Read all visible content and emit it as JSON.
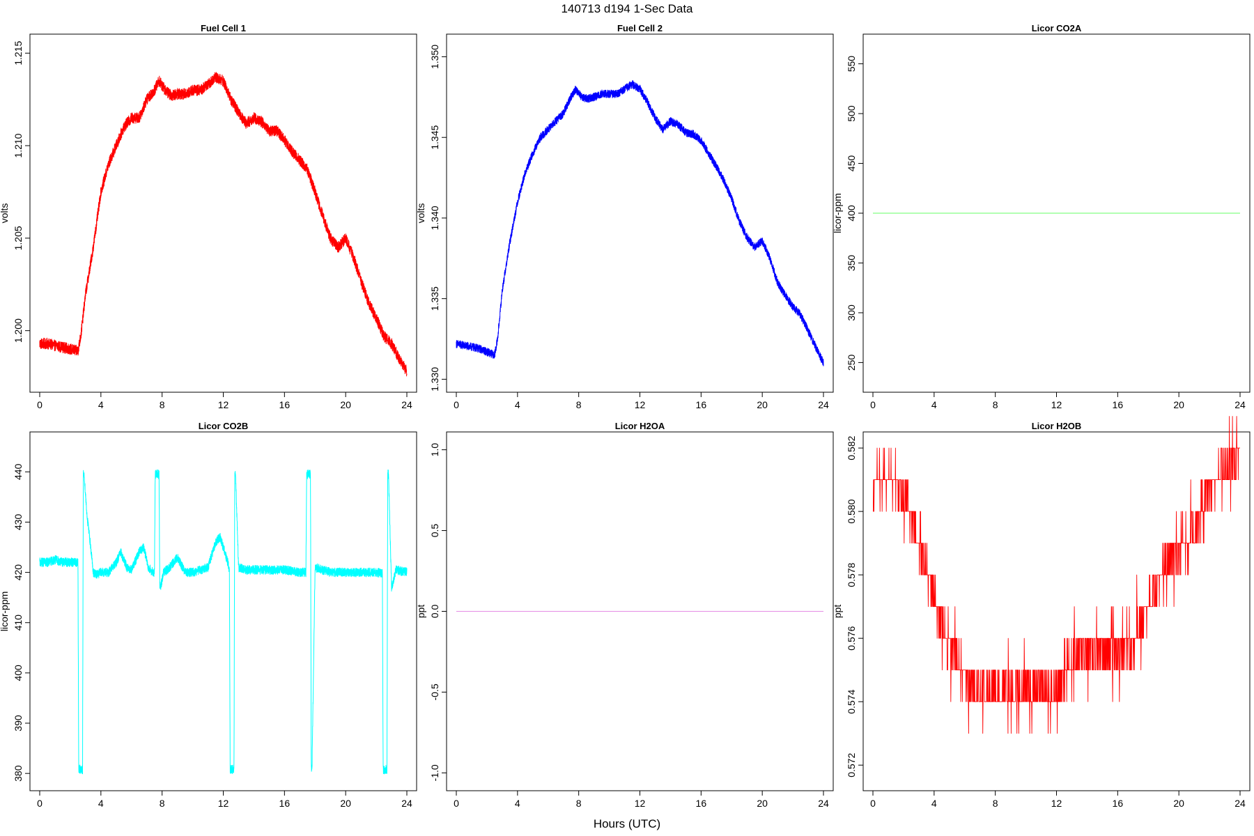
{
  "figure": {
    "title": "140713   d194   1-Sec Data",
    "xlabel": "Hours (UTC)"
  },
  "chart_data": [
    {
      "type": "line",
      "title": "Fuel Cell 1",
      "ylabel": "volts",
      "color": "#ff0000",
      "xlim": [
        0,
        24
      ],
      "ylim": [
        1.1972,
        1.2155
      ],
      "xticks": [
        0,
        4,
        8,
        12,
        16,
        20,
        24
      ],
      "xtick_labels": [
        "0",
        "4",
        "8",
        "12",
        "16",
        "20",
        "24"
      ],
      "yticks": [
        1.2,
        1.205,
        1.21,
        1.215
      ],
      "ytick_labels": [
        "1.200",
        "1.205",
        "1.210",
        "1.215"
      ],
      "noise": 0.0003,
      "x": [
        0,
        0.5,
        1,
        1.5,
        2,
        2.5,
        2.7,
        3,
        3.5,
        4,
        4.5,
        5,
        5.5,
        6,
        6.5,
        7,
        7.5,
        7.8,
        8.2,
        8.6,
        9,
        9.5,
        10,
        10.5,
        11,
        11.5,
        12,
        12.5,
        13,
        13.5,
        14,
        14.5,
        15,
        15.5,
        16,
        16.5,
        17,
        17.5,
        18,
        18.5,
        19,
        19.5,
        20,
        20.5,
        21,
        21.5,
        22,
        22.5,
        23,
        23.5,
        24
      ],
      "y": [
        1.1993,
        1.1993,
        1.1992,
        1.1991,
        1.199,
        1.1989,
        1.1998,
        1.202,
        1.2045,
        1.2075,
        1.209,
        1.21,
        1.211,
        1.2115,
        1.2115,
        1.2125,
        1.213,
        1.2135,
        1.213,
        1.2127,
        1.2128,
        1.2128,
        1.213,
        1.213,
        1.2133,
        1.2137,
        1.2135,
        1.2125,
        1.2118,
        1.2112,
        1.2115,
        1.2113,
        1.2108,
        1.2108,
        1.2103,
        1.2097,
        1.2092,
        1.2087,
        1.2075,
        1.2062,
        1.205,
        1.2045,
        1.205,
        1.204,
        1.2027,
        1.2015,
        1.2007,
        1.1997,
        1.1993,
        1.1985,
        1.1978
      ]
    },
    {
      "type": "line",
      "title": "Fuel Cell 2",
      "ylabel": "volts",
      "color": "#0000ff",
      "xlim": [
        0,
        24
      ],
      "ylim": [
        1.3298,
        1.3508
      ],
      "xticks": [
        0,
        4,
        8,
        12,
        16,
        20,
        24
      ],
      "xtick_labels": [
        "0",
        "4",
        "8",
        "12",
        "16",
        "20",
        "24"
      ],
      "yticks": [
        1.33,
        1.335,
        1.34,
        1.345,
        1.35
      ],
      "ytick_labels": [
        "1.330",
        "1.335",
        "1.340",
        "1.345",
        "1.350"
      ],
      "noise": 0.00025,
      "x": [
        0,
        0.5,
        1,
        1.5,
        2,
        2.5,
        2.7,
        3,
        3.5,
        4,
        4.5,
        5,
        5.5,
        6,
        6.5,
        7,
        7.5,
        7.8,
        8.2,
        8.6,
        9,
        9.5,
        10,
        10.5,
        11,
        11.5,
        12,
        12.5,
        13,
        13.5,
        14,
        14.5,
        15,
        15.5,
        16,
        16.5,
        17,
        17.5,
        18,
        18.5,
        19,
        19.5,
        20,
        20.5,
        21,
        21.5,
        22,
        22.5,
        23,
        23.5,
        24
      ],
      "y": [
        1.3322,
        1.3321,
        1.332,
        1.3319,
        1.3317,
        1.3315,
        1.3325,
        1.3355,
        1.3385,
        1.341,
        1.3428,
        1.344,
        1.345,
        1.3455,
        1.346,
        1.3465,
        1.3475,
        1.348,
        1.3475,
        1.3474,
        1.3475,
        1.3477,
        1.3477,
        1.3477,
        1.348,
        1.3483,
        1.348,
        1.3472,
        1.3462,
        1.3455,
        1.346,
        1.3458,
        1.3453,
        1.3452,
        1.3448,
        1.344,
        1.3432,
        1.3423,
        1.3412,
        1.3398,
        1.3388,
        1.3382,
        1.3386,
        1.3375,
        1.336,
        1.3352,
        1.3345,
        1.334,
        1.333,
        1.332,
        1.331
      ]
    },
    {
      "type": "line",
      "title": "Licor CO2A",
      "ylabel": "licor-ppm",
      "color": "#66ff66",
      "xlim": [
        0,
        24
      ],
      "ylim": [
        230,
        570
      ],
      "xticks": [
        0,
        4,
        8,
        12,
        16,
        20,
        24
      ],
      "xtick_labels": [
        "0",
        "4",
        "8",
        "12",
        "16",
        "20",
        "24"
      ],
      "yticks": [
        250,
        300,
        350,
        400,
        450,
        500,
        550
      ],
      "ytick_labels": [
        "250",
        "300",
        "350",
        "400",
        "450",
        "500",
        "550"
      ],
      "noise": 0,
      "x": [
        0,
        24
      ],
      "y": [
        400,
        400
      ]
    },
    {
      "type": "line",
      "title": "Licor CO2B",
      "ylabel": "licor-ppm",
      "color": "#00ffff",
      "xlim": [
        0,
        24
      ],
      "ylim": [
        378.5,
        446
      ],
      "xticks": [
        0,
        4,
        8,
        12,
        16,
        20,
        24
      ],
      "xtick_labels": [
        "0",
        "4",
        "8",
        "12",
        "16",
        "20",
        "24"
      ],
      "yticks": [
        380,
        390,
        400,
        410,
        420,
        430,
        440
      ],
      "ytick_labels": [
        "380",
        "390",
        "400",
        "410",
        "420",
        "430",
        "440"
      ],
      "noise": 0.9,
      "x": [
        0,
        0.5,
        1,
        1.5,
        2,
        2.5,
        2.55,
        2.6,
        2.8,
        2.85,
        2.9,
        3.1,
        3.3,
        3.5,
        3.7,
        4,
        4.5,
        5,
        5.3,
        5.7,
        6,
        6.5,
        6.8,
        7.1,
        7.4,
        7.5,
        7.55,
        7.6,
        7.8,
        7.85,
        7.9,
        8.1,
        8.5,
        9,
        9.5,
        10,
        10.5,
        11,
        11.5,
        11.8,
        12,
        12.3,
        12.4,
        12.45,
        12.5,
        12.7,
        12.75,
        12.8,
        13,
        13.5,
        14,
        15,
        16,
        17,
        17.4,
        17.45,
        17.5,
        17.7,
        17.75,
        17.8,
        18,
        18.5,
        19,
        20,
        21,
        22,
        22.4,
        22.45,
        22.5,
        22.7,
        22.75,
        22.8,
        23,
        23.3,
        24
      ],
      "y": [
        422,
        422,
        422.5,
        422,
        422,
        422,
        380.8,
        380.8,
        380.8,
        439.5,
        439.5,
        431,
        426,
        420,
        419.5,
        420,
        420,
        422,
        424,
        421,
        420.5,
        424,
        425,
        421,
        420,
        420,
        439.5,
        439.5,
        439.5,
        417.5,
        417,
        420,
        421,
        423,
        420,
        420,
        420.5,
        421,
        426,
        427,
        425,
        422,
        420,
        380.8,
        380.8,
        380.8,
        439.5,
        439.5,
        421,
        420.5,
        420.5,
        420.5,
        420.5,
        420,
        420,
        439.5,
        439.5,
        439.5,
        380.8,
        380.8,
        421,
        420.5,
        420,
        420,
        420,
        420,
        419.8,
        380.8,
        380.8,
        380.8,
        439.5,
        439.5,
        417,
        420.5,
        420
      ]
    },
    {
      "type": "line",
      "title": "Licor H2OA",
      "ylabel": "ppt",
      "color": "#e58ce5",
      "xlim": [
        0,
        24
      ],
      "ylim": [
        -1.05,
        1.05
      ],
      "xticks": [
        0,
        4,
        8,
        12,
        16,
        20,
        24
      ],
      "xtick_labels": [
        "0",
        "4",
        "8",
        "12",
        "16",
        "20",
        "24"
      ],
      "yticks": [
        -1.0,
        -0.5,
        0.0,
        0.5,
        1.0
      ],
      "ytick_labels": [
        "-1.0",
        "-0.5",
        "0.0",
        "0.5",
        "1.0"
      ],
      "noise": 0,
      "x": [
        0,
        24
      ],
      "y": [
        0,
        0
      ]
    },
    {
      "type": "line",
      "title": "Licor H2OB",
      "ylabel": "ppt",
      "color": "#ff0000",
      "xlim": [
        0,
        24
      ],
      "ylim": [
        0.5715,
        0.5822
      ],
      "xticks": [
        0,
        4,
        8,
        12,
        16,
        20,
        24
      ],
      "xtick_labels": [
        "0",
        "4",
        "8",
        "12",
        "16",
        "20",
        "24"
      ],
      "yticks": [
        0.572,
        0.574,
        0.576,
        0.578,
        0.58,
        0.582
      ],
      "ytick_labels": [
        "0.572",
        "0.574",
        "0.576",
        "0.578",
        "0.580",
        "0.582"
      ],
      "quantized": true,
      "step": 0.001,
      "x": [
        0,
        1,
        2,
        2.5,
        3,
        3.5,
        4,
        4.5,
        5,
        5.5,
        6,
        7,
        8,
        9,
        10,
        11,
        12,
        12.5,
        13,
        13.5,
        14,
        14.5,
        15,
        15.5,
        16,
        16.5,
        17,
        17.5,
        18,
        18.5,
        19,
        19.5,
        20,
        20.5,
        21,
        21.5,
        22,
        22.5,
        23,
        23.5,
        24
      ],
      "y": [
        0.5808,
        0.581,
        0.5806,
        0.58,
        0.5788,
        0.5782,
        0.5774,
        0.5765,
        0.5757,
        0.5754,
        0.5748,
        0.5742,
        0.5743,
        0.5744,
        0.5743,
        0.5743,
        0.5743,
        0.5748,
        0.5753,
        0.5756,
        0.5756,
        0.5755,
        0.5757,
        0.5756,
        0.5757,
        0.5756,
        0.5758,
        0.5764,
        0.577,
        0.5776,
        0.5782,
        0.5787,
        0.5789,
        0.579,
        0.5795,
        0.58,
        0.5806,
        0.581,
        0.5812,
        0.5816,
        0.582
      ]
    }
  ]
}
